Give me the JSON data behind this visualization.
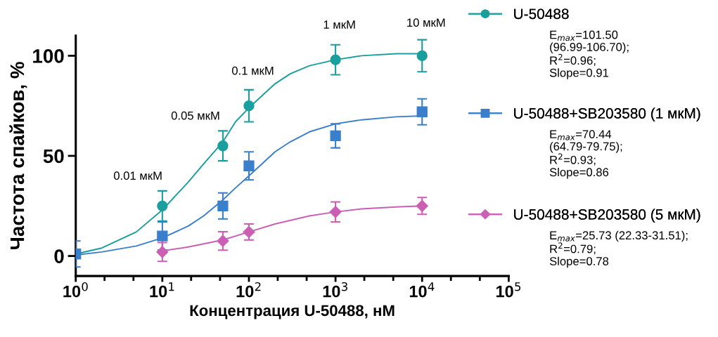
{
  "chart_data": {
    "type": "scatter",
    "xlabel": "Концентрация U-50488, нМ",
    "ylabel": "Частота спайков, %",
    "log": "x",
    "legend": "right",
    "grid": false,
    "xlim": [
      1,
      100000
    ],
    "xticks": [
      {
        "value": 1,
        "label": "10$^{0}$"
      },
      {
        "value": 2.15,
        "label": null
      },
      {
        "value": 4.64,
        "label": null
      },
      {
        "value": 10,
        "label": "10$^{1}$"
      },
      {
        "value": 21.5,
        "label": null
      },
      {
        "value": 46.4,
        "label": null
      },
      {
        "value": 100,
        "label": "10$^{2}$"
      },
      {
        "value": 215,
        "label": null
      },
      {
        "value": 464,
        "label": null
      },
      {
        "value": 1000,
        "label": "10$^{3}$"
      },
      {
        "value": 2150,
        "label": null
      },
      {
        "value": 4640,
        "label": null
      },
      {
        "value": 10000,
        "label": "10$^{4}$"
      },
      {
        "value": 21500,
        "label": null
      },
      {
        "value": 46400,
        "label": null
      },
      {
        "value": 100000,
        "label": "10$^{5}$"
      }
    ],
    "ylim": [
      -10,
      110
    ],
    "yticks": [
      0,
      50,
      100
    ],
    "series": [
      {
        "name": "U-50488",
        "marker": "circle",
        "color": "#1a9e9e",
        "x": [
          10,
          50,
          100,
          1000,
          10000
        ],
        "values": [
          25,
          55,
          75,
          98,
          100
        ],
        "errors": [
          7.5,
          7.5,
          8,
          7.5,
          8
        ]
      },
      {
        "name": "U-50488+SB203580 (1 мкМ)",
        "marker": "square",
        "color": "#3a7fcc",
        "x": [
          1,
          10,
          50,
          100,
          1000,
          10000
        ],
        "values": [
          1,
          10,
          25,
          45,
          60,
          72
        ],
        "errors": [
          6.5,
          7,
          6.5,
          7,
          6,
          6.5
        ]
      },
      {
        "name": "U-50488+SB203580 (5 мкМ)",
        "marker": "diamond",
        "color": "#cc5fb3",
        "x": [
          10,
          50,
          100,
          1000,
          10000
        ],
        "values": [
          2,
          7.5,
          12,
          22,
          25
        ],
        "errors": [
          4.7,
          4.6,
          4,
          5,
          4.2
        ]
      },
      {
        "type": "line",
        "marker": "none",
        "color": "#1a9e9e",
        "x": [
          1,
          2,
          5,
          10,
          20,
          30,
          50,
          70,
          100,
          150,
          200,
          300,
          500,
          1000,
          2000,
          5000,
          10000
        ],
        "values": [
          1,
          4,
          12,
          23,
          37,
          46,
          57,
          67,
          74,
          81,
          86,
          91,
          95,
          98,
          100,
          101,
          101
        ]
      },
      {
        "type": "line",
        "marker": "none",
        "color": "#3a7fcc",
        "x": [
          1,
          2,
          5,
          10,
          20,
          30,
          50,
          70,
          100,
          150,
          200,
          300,
          500,
          1000,
          2000,
          5000,
          10000
        ],
        "values": [
          0.5,
          2,
          5,
          9,
          15,
          20,
          28,
          34,
          40,
          47,
          52,
          57,
          62,
          66,
          68,
          69.5,
          70
        ]
      },
      {
        "type": "line",
        "marker": "none",
        "color": "#cc5fb3",
        "x": [
          10,
          20,
          50,
          100,
          200,
          500,
          1000,
          2000,
          5000,
          10000
        ],
        "values": [
          2.5,
          4.5,
          8,
          12,
          16,
          20,
          22,
          23.5,
          24.5,
          25
        ]
      }
    ],
    "annotations": [
      {
        "text": "0.01 мкМ",
        "x": 10,
        "y": 25
      },
      {
        "text": "0.05 мкМ",
        "x": 50,
        "y": 55
      },
      {
        "text": "0.1 мкМ",
        "x": 100,
        "y": 75
      },
      {
        "text": "1 мкМ",
        "x": 1000,
        "y": 98
      },
      {
        "text": "10 мкМ",
        "x": 10000,
        "y": 100
      },
      "E$_{max}$=101.50\n(96.99-106.70);\nR$^{2}$=0.96;\nSlope=0.91",
      "E$_{max}$=70.44\n(64.79-79.75);\nR$^{2}$=0.93;\nSlope=0.86",
      "E$_{max}$=25.73 (22.33-31.51);\nR$^{2}$=0.79;\nSlope=0.78"
    ]
  }
}
